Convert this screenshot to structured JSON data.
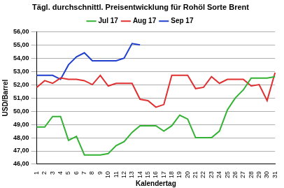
{
  "chart_data": {
    "type": "line",
    "title": "Tägl. durchschnittl. Preisentwicklung für Rohöl Sorte Brent",
    "x_label": "Kalendertag",
    "y_label": "USD/Barrel",
    "categories": [
      "1",
      "2",
      "3",
      "4",
      "5",
      "6",
      "7",
      "8",
      "9",
      "10",
      "11",
      "12",
      "13",
      "14",
      "15",
      "16",
      "17",
      "18",
      "19",
      "20",
      "21",
      "22",
      "23",
      "24",
      "25",
      "26",
      "27",
      "28",
      "29",
      "30",
      "31"
    ],
    "series": [
      {
        "name": "Jul 17",
        "color": "#33b233",
        "values": [
          48.8,
          48.8,
          49.6,
          49.6,
          47.8,
          48.1,
          46.7,
          46.7,
          46.7,
          46.8,
          47.4,
          47.7,
          48.4,
          48.9,
          48.9,
          48.9,
          48.5,
          48.9,
          49.7,
          49.4,
          48.0,
          48.0,
          48.0,
          48.5,
          50.1,
          51.0,
          51.6,
          52.5,
          52.5,
          52.5,
          52.6
        ]
      },
      {
        "name": "Aug 17",
        "color": "#e03030",
        "values": [
          51.8,
          52.3,
          52.1,
          52.5,
          52.4,
          52.4,
          52.3,
          52.0,
          52.7,
          51.9,
          52.1,
          52.1,
          52.1,
          50.9,
          50.8,
          50.3,
          50.5,
          52.7,
          52.7,
          52.7,
          51.7,
          51.8,
          52.6,
          52.1,
          52.4,
          52.4,
          52.4,
          51.9,
          52.0,
          50.8,
          52.9
        ]
      },
      {
        "name": "Sep 17",
        "color": "#1f3fcc",
        "values": [
          52.7,
          52.7,
          52.7,
          52.4,
          53.5,
          54.1,
          54.4,
          53.8,
          53.8,
          53.8,
          53.8,
          54.0,
          55.1,
          55.0,
          null,
          null,
          null,
          null,
          null,
          null,
          null,
          null,
          null,
          null,
          null,
          null,
          null,
          null,
          null,
          null,
          null
        ]
      }
    ],
    "ylim": [
      46,
      56
    ],
    "yticks": [
      {
        "value": 46,
        "label": "46,00"
      },
      {
        "value": 47,
        "label": "47,00"
      },
      {
        "value": 48,
        "label": "48,00"
      },
      {
        "value": 49,
        "label": "49,00"
      },
      {
        "value": 50,
        "label": "50,00"
      },
      {
        "value": 51,
        "label": "51,00"
      },
      {
        "value": 52,
        "label": "52,00"
      },
      {
        "value": 53,
        "label": "53,00"
      },
      {
        "value": 54,
        "label": "54,00"
      },
      {
        "value": 55,
        "label": "55,00"
      },
      {
        "value": 56,
        "label": "56,00"
      }
    ],
    "grid": true,
    "legend": "top"
  }
}
